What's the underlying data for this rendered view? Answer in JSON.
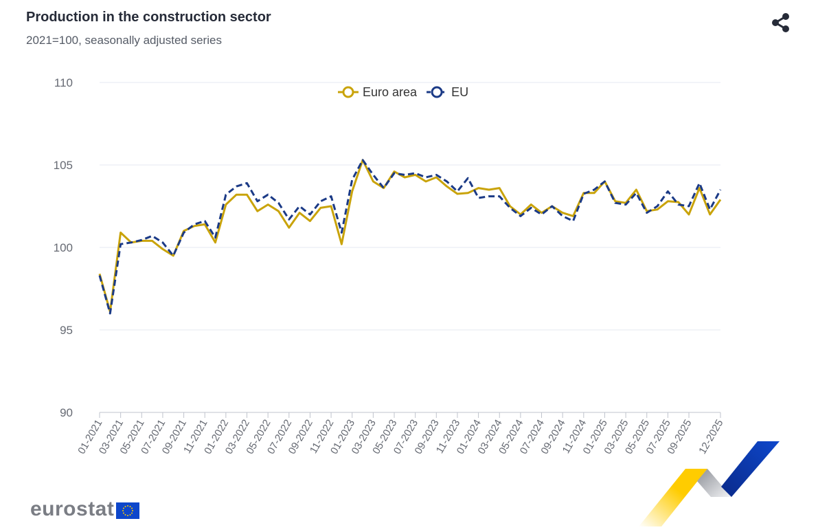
{
  "title": "Production in the construction sector",
  "subtitle": "2021=100, seasonally adjusted series",
  "share_icon": "share-icon",
  "logo": {
    "text": "eurostat",
    "flag": "eu-flag"
  },
  "colors": {
    "euro_area": "#c9a30a",
    "eu": "#1b3a86",
    "grid": "#e6e9f0",
    "axis_text": "#666a73"
  },
  "chart_data": {
    "type": "line",
    "title": "Production in the construction sector",
    "subtitle": "2021=100, seasonally adjusted series",
    "ylim": [
      90,
      110
    ],
    "yticks": [
      "90",
      "95",
      "100",
      "105",
      "110"
    ],
    "grid": true,
    "legend_position": "top-center",
    "x": [
      "01-2021",
      "02-2021",
      "03-2021",
      "04-2021",
      "05-2021",
      "06-2021",
      "07-2021",
      "08-2021",
      "09-2021",
      "10-2021",
      "11-2021",
      "12-2021",
      "01-2022",
      "02-2022",
      "03-2022",
      "04-2022",
      "05-2022",
      "06-2022",
      "07-2022",
      "08-2022",
      "09-2022",
      "10-2022",
      "11-2022",
      "12-2022",
      "01-2023",
      "02-2023",
      "03-2023",
      "04-2023",
      "05-2023",
      "06-2023",
      "07-2023",
      "08-2023",
      "09-2023",
      "10-2023",
      "11-2023",
      "12-2023",
      "01-2024",
      "02-2024",
      "03-2024",
      "04-2024",
      "05-2024",
      "06-2024",
      "07-2024",
      "08-2024",
      "09-2024",
      "10-2024",
      "11-2024",
      "12-2024",
      "01-2025",
      "02-2025",
      "03-2025",
      "04-2025",
      "05-2025",
      "06-2025",
      "07-2025",
      "08-2025",
      "09-2025",
      "10-2025",
      "11-2025",
      "12-2025"
    ],
    "xtick_labels": [
      "01-2021",
      "03-2021",
      "05-2021",
      "07-2021",
      "09-2021",
      "11-2021",
      "01-2022",
      "03-2022",
      "05-2022",
      "07-2022",
      "09-2022",
      "11-2022",
      "01-2023",
      "03-2023",
      "05-2023",
      "07-2023",
      "09-2023",
      "11-2023",
      "01-2024",
      "03-2024",
      "05-2024",
      "07-2024",
      "09-2024",
      "11-2024",
      "01-2025",
      "03-2025",
      "05-2025",
      "07-2025",
      "09-2025",
      "12-2025"
    ],
    "series": [
      {
        "name": "Euro area",
        "style": "solid",
        "values": [
          98.4,
          96.1,
          100.9,
          100.3,
          100.4,
          100.4,
          99.9,
          99.5,
          101.0,
          101.3,
          101.4,
          100.3,
          102.6,
          103.2,
          103.2,
          102.2,
          102.6,
          102.2,
          101.2,
          102.1,
          101.6,
          102.4,
          102.5,
          100.2,
          103.4,
          105.3,
          104.0,
          103.6,
          104.6,
          104.25,
          104.4,
          104.0,
          104.25,
          103.7,
          103.25,
          103.3,
          103.6,
          103.5,
          103.6,
          102.5,
          102.0,
          102.6,
          102.1,
          102.5,
          102.1,
          101.9,
          103.3,
          103.3,
          104.0,
          102.8,
          102.7,
          103.5,
          102.2,
          102.3,
          102.8,
          102.75,
          102.0,
          103.6,
          102.0,
          102.9
        ]
      },
      {
        "name": "EU",
        "style": "dashed",
        "values": [
          98.3,
          96.0,
          100.2,
          100.3,
          100.45,
          100.7,
          100.3,
          99.5,
          100.9,
          101.4,
          101.6,
          100.6,
          103.2,
          103.7,
          103.9,
          102.8,
          103.2,
          102.7,
          101.7,
          102.5,
          102.0,
          102.8,
          103.1,
          100.9,
          104.1,
          105.3,
          104.4,
          103.6,
          104.5,
          104.4,
          104.5,
          104.25,
          104.4,
          104.0,
          103.4,
          104.2,
          103.0,
          103.1,
          103.1,
          102.4,
          101.9,
          102.4,
          102.0,
          102.5,
          101.9,
          101.6,
          103.25,
          103.5,
          104.0,
          102.7,
          102.6,
          103.3,
          102.1,
          102.5,
          103.4,
          102.6,
          102.5,
          103.9,
          102.3,
          103.5
        ]
      }
    ]
  }
}
